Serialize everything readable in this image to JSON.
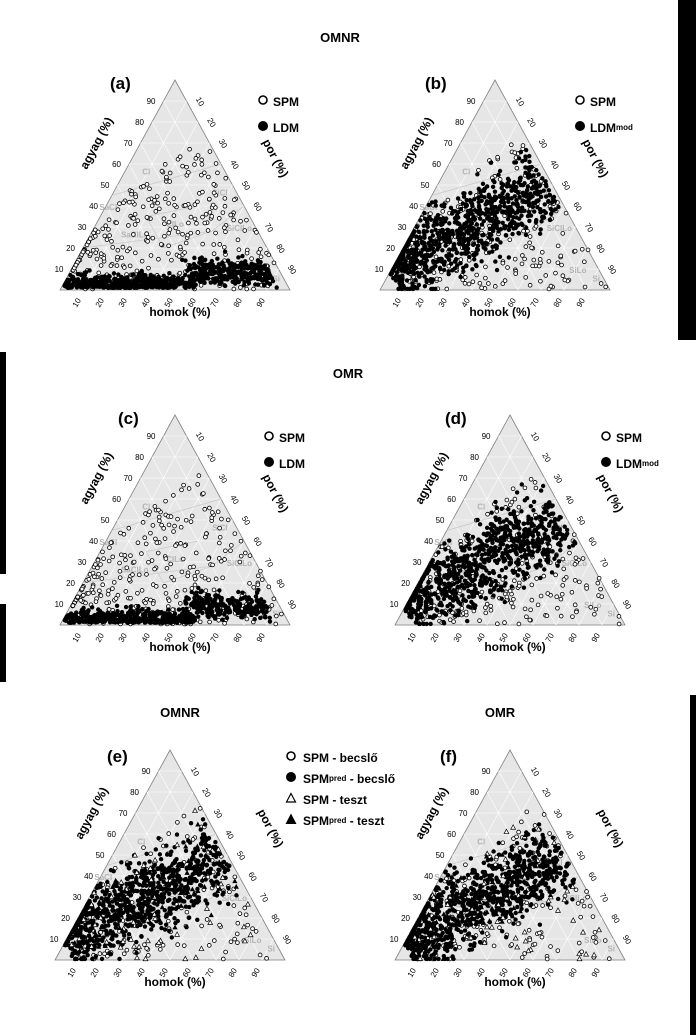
{
  "figure": {
    "top_heading": "OMNR",
    "mid_heading": "OMR",
    "bottom_left_heading": "OMNR",
    "bottom_right_heading": "OMR"
  },
  "axes": {
    "left": "agyag (%)",
    "right": "por (%)",
    "bottom": "homok (%)",
    "ticks": [
      "10",
      "20",
      "30",
      "40",
      "50",
      "60",
      "70",
      "80",
      "90"
    ],
    "regions": [
      "Cl",
      "SaCl",
      "SiCl",
      "SaClLo",
      "ClLo",
      "SiClLo",
      "Si",
      "SiLo"
    ]
  },
  "legend": {
    "spm": "SPM",
    "ldm": "LDM",
    "ldm_mod_main": "LDM",
    "ldm_mod_sub": "mod",
    "spm_becslo": "SPM - becslő",
    "spm_pred_becslo_main": "SPM",
    "spm_pred_becslo_sub": "pred",
    "spm_pred_becslo_rest": " - becslő",
    "spm_teszt": "SPM - teszt",
    "spm_pred_teszt_main": "SPM",
    "spm_pred_teszt_sub": "pred",
    "spm_pred_teszt_rest": " - teszt"
  },
  "chart_data": [
    {
      "type": "scatter",
      "panel": "(a)",
      "subplot": "ternary",
      "series": [
        {
          "name": "SPM",
          "marker": "open-circle",
          "cloud": "wide",
          "n": 320
        },
        {
          "name": "LDM",
          "marker": "filled-circle",
          "cloud": "low-clay",
          "n": 700
        }
      ]
    },
    {
      "type": "scatter",
      "panel": "(b)",
      "subplot": "ternary",
      "series": [
        {
          "name": "SPM",
          "marker": "open-circle",
          "cloud": "wide",
          "n": 250
        },
        {
          "name": "LDMmod",
          "marker": "filled-circle",
          "cloud": "silt-band",
          "n": 850
        }
      ]
    },
    {
      "type": "scatter",
      "panel": "(c)",
      "subplot": "ternary",
      "series": [
        {
          "name": "SPM",
          "marker": "open-circle",
          "cloud": "wide",
          "n": 320
        },
        {
          "name": "LDM",
          "marker": "filled-circle",
          "cloud": "low-clay",
          "n": 650
        }
      ]
    },
    {
      "type": "scatter",
      "panel": "(d)",
      "subplot": "ternary",
      "series": [
        {
          "name": "SPM",
          "marker": "open-circle",
          "cloud": "wide",
          "n": 250
        },
        {
          "name": "LDMmod",
          "marker": "filled-circle",
          "cloud": "silt-band",
          "n": 800
        }
      ]
    },
    {
      "type": "scatter",
      "panel": "(e)",
      "subplot": "ternary",
      "series": [
        {
          "name": "SPM - becslő",
          "marker": "open-circle",
          "cloud": "wide",
          "n": 180
        },
        {
          "name": "SPMpred - becslő",
          "marker": "filled-circle",
          "cloud": "silt-band",
          "n": 800
        },
        {
          "name": "SPM - teszt",
          "marker": "open-triangle",
          "cloud": "wide",
          "n": 60
        },
        {
          "name": "SPMpred - teszt",
          "marker": "filled-triangle",
          "cloud": "silt-band",
          "n": 120
        }
      ]
    },
    {
      "type": "scatter",
      "panel": "(f)",
      "subplot": "ternary",
      "series": [
        {
          "name": "SPM - becslő",
          "marker": "open-circle",
          "cloud": "wide",
          "n": 180
        },
        {
          "name": "SPMpred - becslő",
          "marker": "filled-circle",
          "cloud": "silt-band",
          "n": 800
        },
        {
          "name": "SPM - teszt",
          "marker": "open-triangle",
          "cloud": "wide",
          "n": 60
        },
        {
          "name": "SPMpred - teszt",
          "marker": "filled-triangle",
          "cloud": "silt-band",
          "n": 120
        }
      ]
    }
  ]
}
